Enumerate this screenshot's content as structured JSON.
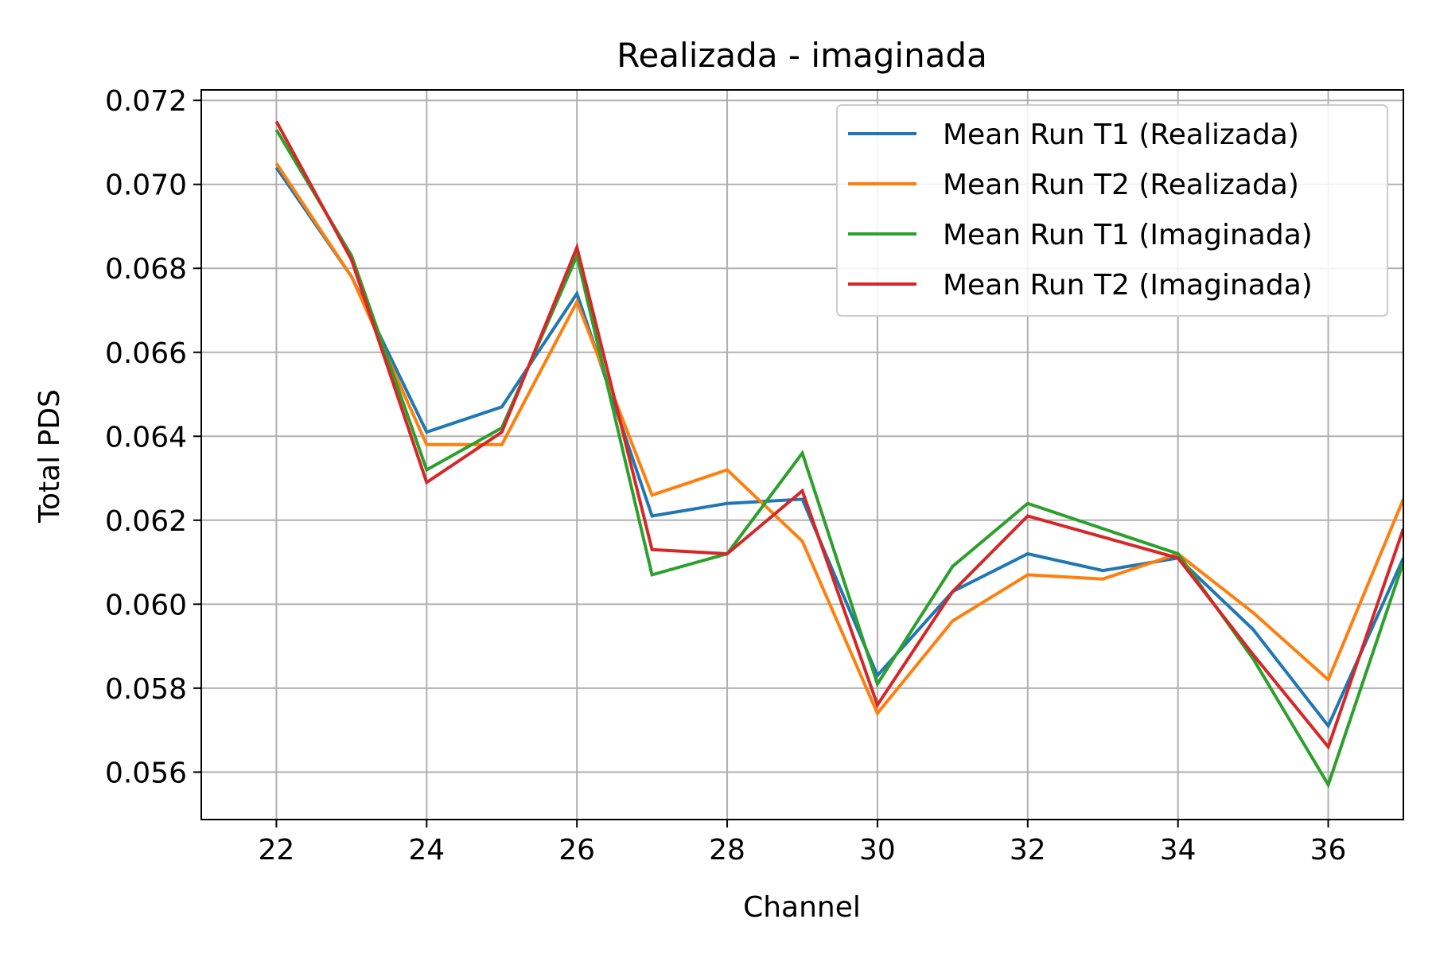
{
  "chart_data": {
    "type": "line",
    "title": "Realizada - imaginada",
    "xlabel": "Channel",
    "ylabel": "Total PDS",
    "xlim": [
      21,
      37
    ],
    "ylim": [
      0.05487,
      0.07225
    ],
    "xticks": [
      22,
      24,
      26,
      28,
      30,
      32,
      34,
      36
    ],
    "xtick_labels": [
      "22",
      "24",
      "26",
      "28",
      "30",
      "32",
      "34",
      "36"
    ],
    "yticks": [
      0.056,
      0.058,
      0.06,
      0.062,
      0.064,
      0.066,
      0.068,
      0.07,
      0.072
    ],
    "ytick_labels": [
      "0.056",
      "0.058",
      "0.060",
      "0.062",
      "0.064",
      "0.066",
      "0.068",
      "0.070",
      "0.072"
    ],
    "grid": true,
    "legend_position": "top-right",
    "x": [
      22,
      23,
      24,
      25,
      26,
      27,
      28,
      29,
      30,
      31,
      32,
      33,
      34,
      35,
      36,
      37
    ],
    "series": [
      {
        "name": "Mean Run T1 (Realizada)",
        "color": "#1f77b4",
        "values": [
          0.0704,
          0.0678,
          0.0641,
          0.0647,
          0.0674,
          0.0621,
          0.0624,
          0.0625,
          0.0583,
          0.0603,
          0.0612,
          0.0608,
          0.0611,
          0.0594,
          0.0571,
          0.0611
        ]
      },
      {
        "name": "Mean Run T2 (Realizada)",
        "color": "#ff7f0e",
        "values": [
          0.0705,
          0.0678,
          0.0638,
          0.0638,
          0.0672,
          0.0626,
          0.0632,
          0.0615,
          0.0574,
          0.0596,
          0.0607,
          0.0606,
          0.0612,
          0.0598,
          0.0582,
          0.0625
        ]
      },
      {
        "name": "Mean Run T1 (Imaginada)",
        "color": "#2ca02c",
        "values": [
          0.0713,
          0.0683,
          0.0632,
          0.0642,
          0.0683,
          0.0607,
          0.0612,
          0.0636,
          0.0581,
          0.0609,
          0.0624,
          0.0618,
          0.0612,
          0.0587,
          0.0557,
          0.061
        ]
      },
      {
        "name": "Mean Run T2 (Imaginada)",
        "color": "#d62728",
        "values": [
          0.0715,
          0.0682,
          0.0629,
          0.0641,
          0.0685,
          0.0613,
          0.0612,
          0.0627,
          0.0576,
          0.0603,
          0.0621,
          0.0616,
          0.0611,
          0.0588,
          0.0566,
          0.0618
        ]
      }
    ]
  }
}
